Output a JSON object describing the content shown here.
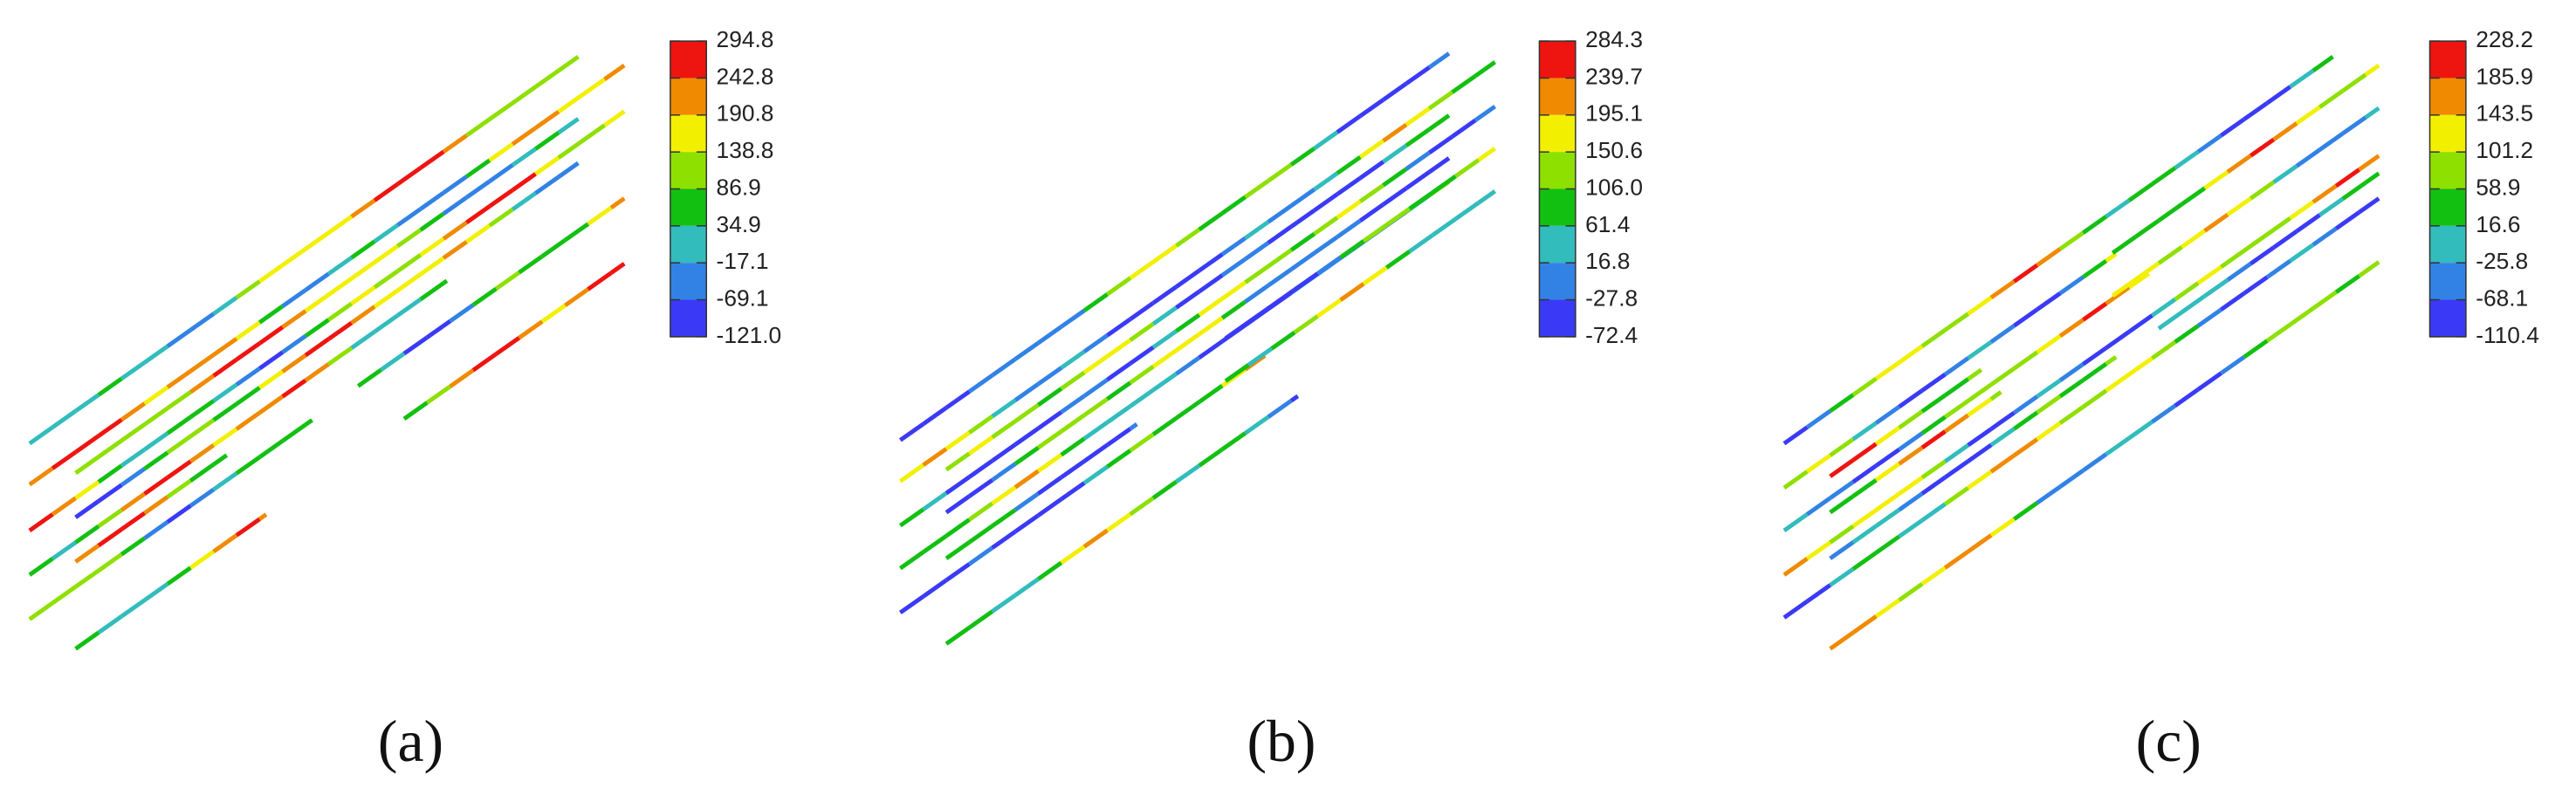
{
  "panels": [
    {
      "caption": "(a)",
      "colorbar": {
        "labels": [
          "294.8",
          "242.8",
          "190.8",
          "138.8",
          "86.9",
          "34.9",
          "-17.1",
          "-69.1",
          "-121.0"
        ]
      }
    },
    {
      "caption": "(b)",
      "colorbar": {
        "labels": [
          "284.3",
          "239.7",
          "195.1",
          "150.6",
          "106.0",
          "61.4",
          "16.8",
          "-27.8",
          "-72.4"
        ]
      }
    },
    {
      "caption": "(c)",
      "colorbar": {
        "labels": [
          "228.2",
          "185.9",
          "143.5",
          "101.2",
          "58.9",
          "16.6",
          "-25.8",
          "-68.1",
          "-110.4"
        ]
      }
    }
  ]
}
